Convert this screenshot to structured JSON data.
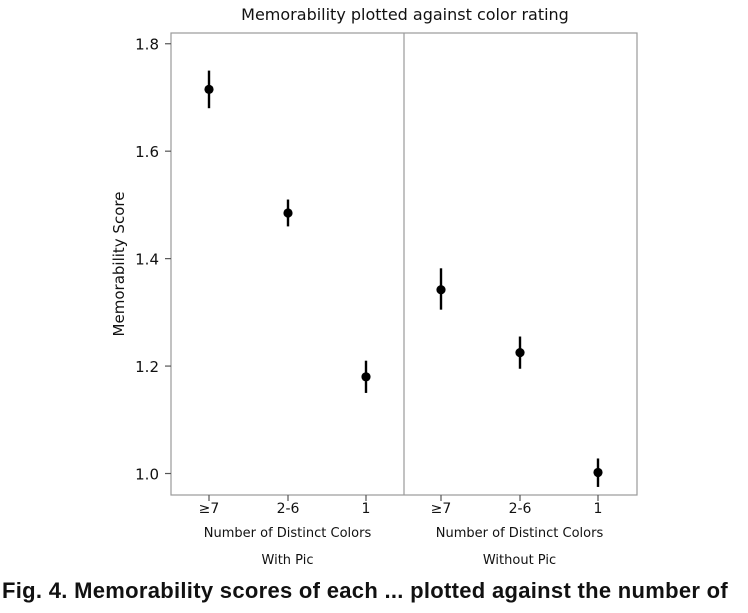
{
  "chart_data": {
    "type": "scatter",
    "title": "Memorability plotted against color rating",
    "ylabel": "Memorability Score",
    "ylim": [
      0.96,
      1.82
    ],
    "yticks": [
      "1.0",
      "1.2",
      "1.4",
      "1.6",
      "1.8"
    ],
    "grid": false,
    "error_bars": true,
    "panels": [
      {
        "name": "With Pic",
        "xlabel": "Number of Distinct Colors",
        "categories": [
          "≥7",
          "2-6",
          "1"
        ],
        "values": [
          1.715,
          1.485,
          1.18
        ],
        "error_low": [
          1.68,
          1.46,
          1.15
        ],
        "error_high": [
          1.75,
          1.51,
          1.21
        ]
      },
      {
        "name": "Without Pic",
        "xlabel": "Number of Distinct Colors",
        "categories": [
          "≥7",
          "2-6",
          "1"
        ],
        "values": [
          1.342,
          1.225,
          1.002
        ],
        "error_low": [
          1.305,
          1.195,
          0.975
        ],
        "error_high": [
          1.382,
          1.255,
          1.028
        ]
      }
    ]
  },
  "caption": "Fig. 4.  Memorability scores of each ... plotted against the number of"
}
